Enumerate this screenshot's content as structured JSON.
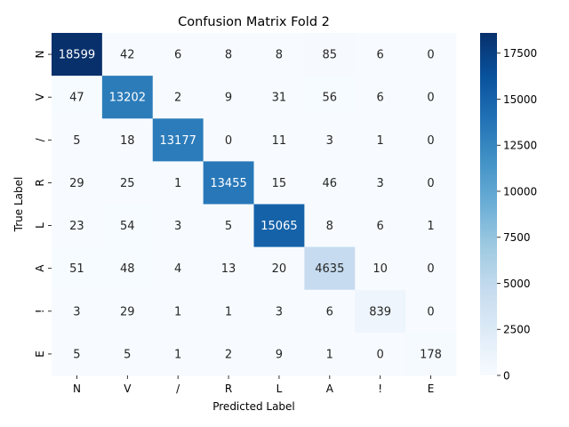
{
  "chart_data": {
    "type": "heatmap",
    "title": "Confusion Matrix Fold 2",
    "xlabel": "Predicted Label",
    "ylabel": "True Label",
    "x_categories": [
      "N",
      "V",
      "/",
      "R",
      "L",
      "A",
      "!",
      "E"
    ],
    "y_categories": [
      "N",
      "V",
      "/",
      "R",
      "L",
      "A",
      "!",
      "E"
    ],
    "values": [
      [
        18599,
        42,
        6,
        8,
        8,
        85,
        6,
        0
      ],
      [
        47,
        13202,
        2,
        9,
        31,
        56,
        6,
        0
      ],
      [
        5,
        18,
        13177,
        0,
        11,
        3,
        1,
        0
      ],
      [
        29,
        25,
        1,
        13455,
        15,
        46,
        3,
        0
      ],
      [
        23,
        54,
        3,
        5,
        15065,
        8,
        6,
        1
      ],
      [
        51,
        48,
        4,
        13,
        20,
        4635,
        10,
        0
      ],
      [
        3,
        29,
        1,
        1,
        3,
        6,
        839,
        0
      ],
      [
        5,
        5,
        1,
        2,
        9,
        1,
        0,
        178
      ]
    ],
    "colormap": "Blues",
    "color_range": [
      0,
      18599
    ],
    "colorbar_ticks": [
      0,
      2500,
      5000,
      7500,
      10000,
      12500,
      15000,
      17500
    ],
    "text_color_light": "#ffffff",
    "text_color_dark": "#262626"
  }
}
